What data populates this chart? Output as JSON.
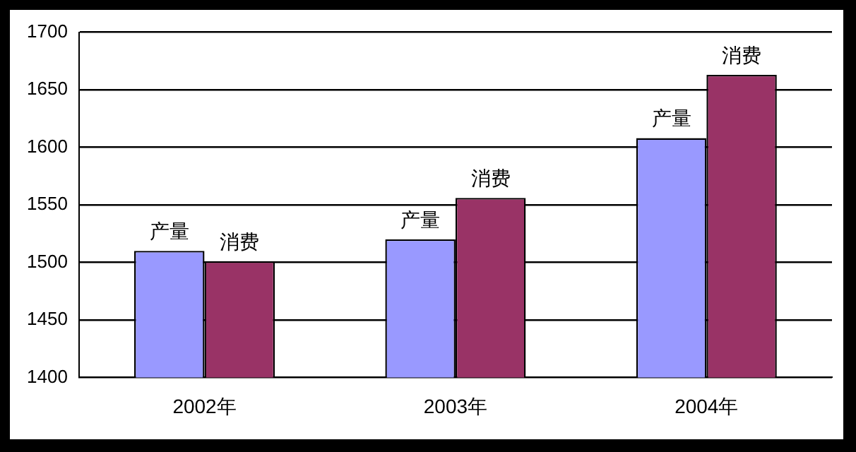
{
  "chart_data": {
    "type": "bar",
    "categories": [
      "2002年",
      "2003年",
      "2004年"
    ],
    "series": [
      {
        "name": "产量",
        "color": "#9999ff",
        "values": [
          1510,
          1520,
          1608
        ]
      },
      {
        "name": "消费",
        "color": "#993366",
        "values": [
          1501,
          1556,
          1663
        ]
      }
    ],
    "ylim": [
      1400,
      1700
    ],
    "yticks": [
      1400,
      1450,
      1500,
      1550,
      1600,
      1650,
      1700
    ],
    "grid": "y",
    "legend": false
  }
}
